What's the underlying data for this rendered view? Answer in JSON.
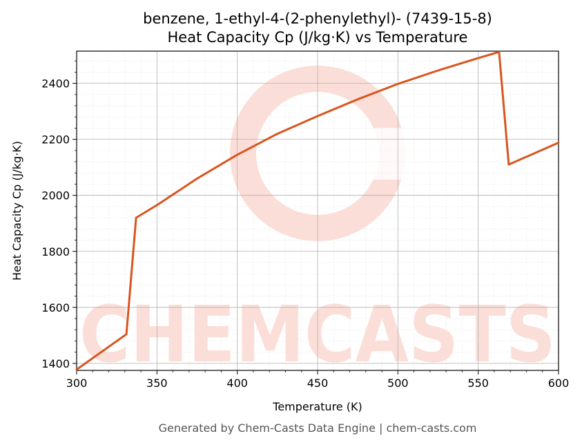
{
  "chart_data": {
    "type": "line",
    "title": "benzene, 1-ethyl-4-(2-phenylethyl)- (7439-15-8)",
    "subtitle": "Heat Capacity Cp (J/kg·K) vs Temperature",
    "xlabel": "Temperature (K)",
    "ylabel": "Heat Capacity Cp (J/kg·K)",
    "xlim": [
      300,
      600
    ],
    "ylim": [
      1375,
      2515
    ],
    "x_ticks": [
      300,
      350,
      400,
      450,
      500,
      550,
      600
    ],
    "y_ticks": [
      1400,
      1600,
      1800,
      2000,
      2200,
      2400
    ],
    "grid": true,
    "legend": "none",
    "series": [
      {
        "color": "#d9541e",
        "x": [
          300,
          331,
          337,
          350,
          375,
          400,
          425,
          450,
          475,
          500,
          525,
          550,
          563,
          569,
          600
        ],
        "y": [
          1378,
          1504,
          1920,
          1965,
          2060,
          2145,
          2220,
          2283,
          2343,
          2398,
          2446,
          2490,
          2512,
          2110,
          2188
        ]
      }
    ]
  },
  "footer": "Generated by Chem-Casts Data Engine | chem-casts.com",
  "watermark": "CHEMCASTS"
}
